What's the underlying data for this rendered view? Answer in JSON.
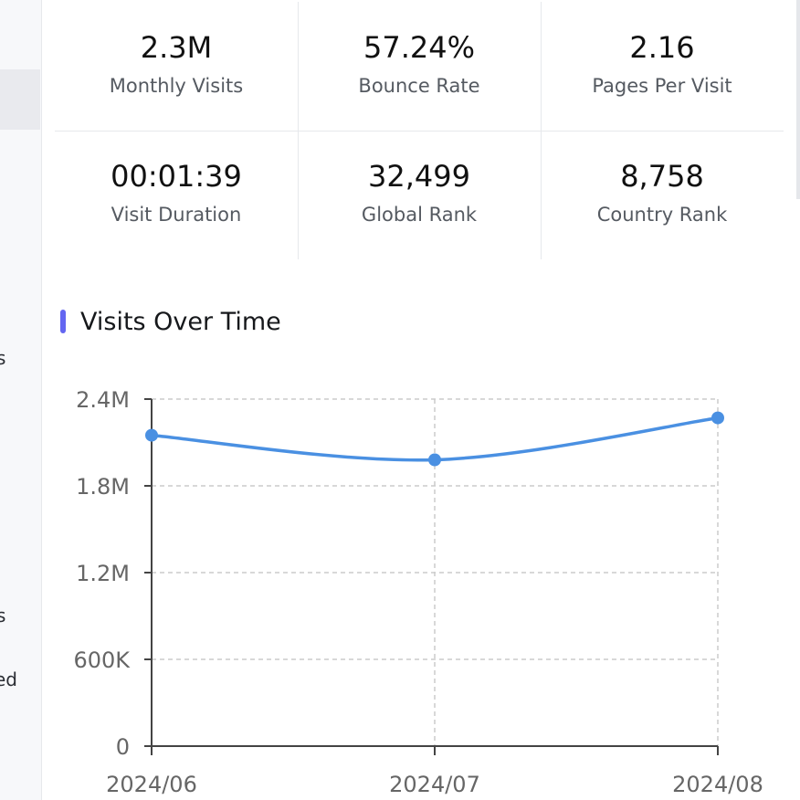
{
  "sidebar": {
    "fragments": [
      "",
      "s",
      "s",
      "ed"
    ]
  },
  "stats": [
    {
      "value": "2.3M",
      "label": "Monthly Visits"
    },
    {
      "value": "57.24%",
      "label": "Bounce Rate"
    },
    {
      "value": "2.16",
      "label": "Pages Per Visit"
    },
    {
      "value": "00:01:39",
      "label": "Visit Duration"
    },
    {
      "value": "32,499",
      "label": "Global Rank"
    },
    {
      "value": "8,758",
      "label": "Country Rank"
    }
  ],
  "section": {
    "title": "Visits Over Time"
  },
  "colors": {
    "accent_bar": "#6366f1",
    "series_line": "#4a90e2",
    "grid": "#cccccc"
  },
  "chart_data": {
    "type": "line",
    "x": [
      "2024/06",
      "2024/07",
      "2024/08"
    ],
    "series": [
      {
        "values": [
          2150000,
          1980000,
          2270000
        ]
      }
    ],
    "ylim": [
      0,
      2400000
    ],
    "yticks": [
      0,
      600000,
      1200000,
      1800000,
      2400000
    ],
    "ytick_labels": [
      "0",
      "600K",
      "1.2M",
      "1.8M",
      "2.4M"
    ],
    "grid": true
  }
}
